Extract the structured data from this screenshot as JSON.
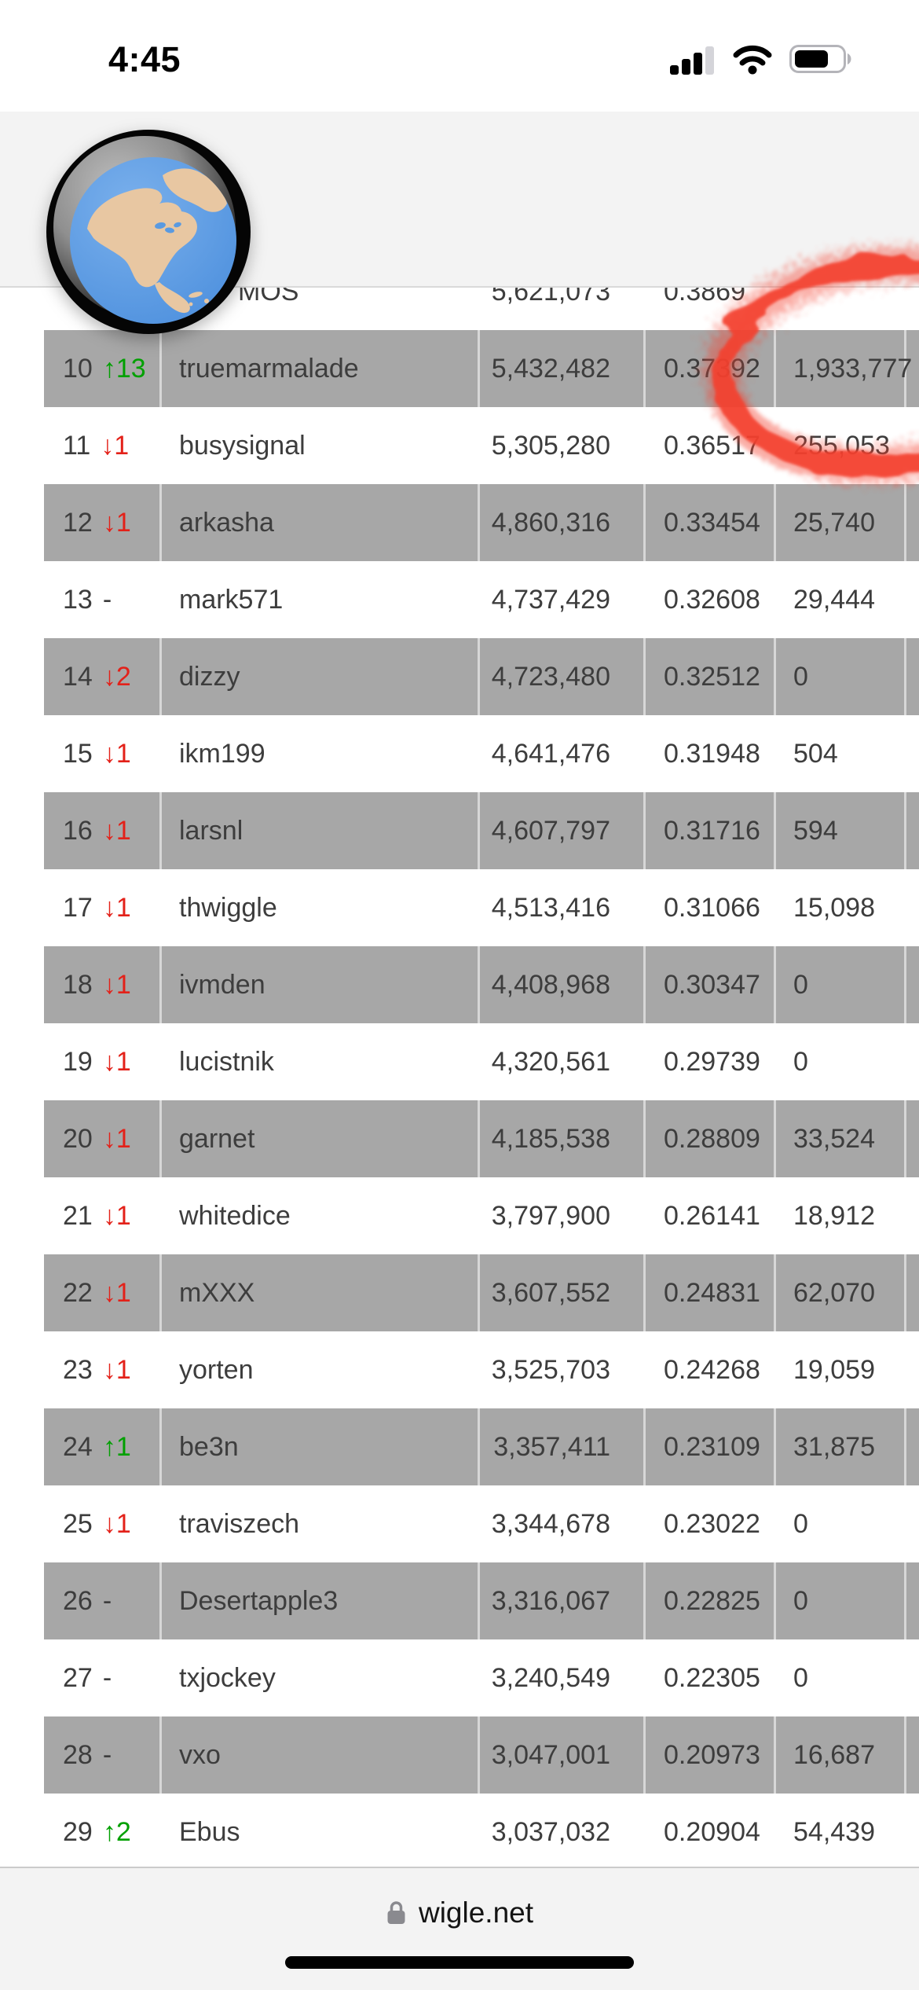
{
  "status_bar": {
    "time": "4:45",
    "cellular_icon": "cellular-signal-3-of-4-bars",
    "wifi_icon": "wifi-full",
    "battery_icon": "battery-about-60-percent"
  },
  "header": {
    "logo": "wigle-globe-logo"
  },
  "table": {
    "partial_row": {
      "rank": "",
      "change": "",
      "dir": "",
      "name_fragment": "MOS",
      "total": "5,621,073",
      "ratio": "0.3869",
      "monthly": "",
      "shaded": false
    },
    "rows": [
      {
        "rank": "10",
        "change": "↑13",
        "dir": "up",
        "name": "truemarmalade",
        "total": "5,432,482",
        "ratio": "0.37392",
        "monthly": "1,933,777",
        "shaded": true
      },
      {
        "rank": "11",
        "change": "↓1",
        "dir": "down",
        "name": "busysignal",
        "total": "5,305,280",
        "ratio": "0.36517",
        "monthly": "255,053",
        "shaded": false
      },
      {
        "rank": "12",
        "change": "↓1",
        "dir": "down",
        "name": "arkasha",
        "total": "4,860,316",
        "ratio": "0.33454",
        "monthly": "25,740",
        "shaded": true
      },
      {
        "rank": "13",
        "change": "-",
        "dir": "",
        "name": "mark571",
        "total": "4,737,429",
        "ratio": "0.32608",
        "monthly": "29,444",
        "shaded": false
      },
      {
        "rank": "14",
        "change": "↓2",
        "dir": "down",
        "name": "dizzy",
        "total": "4,723,480",
        "ratio": "0.32512",
        "monthly": "0",
        "shaded": true
      },
      {
        "rank": "15",
        "change": "↓1",
        "dir": "down",
        "name": "ikm199",
        "total": "4,641,476",
        "ratio": "0.31948",
        "monthly": "504",
        "shaded": false
      },
      {
        "rank": "16",
        "change": "↓1",
        "dir": "down",
        "name": "larsnl",
        "total": "4,607,797",
        "ratio": "0.31716",
        "monthly": "594",
        "shaded": true
      },
      {
        "rank": "17",
        "change": "↓1",
        "dir": "down",
        "name": "thwiggle",
        "total": "4,513,416",
        "ratio": "0.31066",
        "monthly": "15,098",
        "shaded": false
      },
      {
        "rank": "18",
        "change": "↓1",
        "dir": "down",
        "name": "ivmden",
        "total": "4,408,968",
        "ratio": "0.30347",
        "monthly": "0",
        "shaded": true
      },
      {
        "rank": "19",
        "change": "↓1",
        "dir": "down",
        "name": "lucistnik",
        "total": "4,320,561",
        "ratio": "0.29739",
        "monthly": "0",
        "shaded": false
      },
      {
        "rank": "20",
        "change": "↓1",
        "dir": "down",
        "name": "garnet",
        "total": "4,185,538",
        "ratio": "0.28809",
        "monthly": "33,524",
        "shaded": true
      },
      {
        "rank": "21",
        "change": "↓1",
        "dir": "down",
        "name": "whitedice",
        "total": "3,797,900",
        "ratio": "0.26141",
        "monthly": "18,912",
        "shaded": false
      },
      {
        "rank": "22",
        "change": "↓1",
        "dir": "down",
        "name": "mXXX",
        "total": "3,607,552",
        "ratio": "0.24831",
        "monthly": "62,070",
        "shaded": true
      },
      {
        "rank": "23",
        "change": "↓1",
        "dir": "down",
        "name": "yorten",
        "total": "3,525,703",
        "ratio": "0.24268",
        "monthly": "19,059",
        "shaded": false
      },
      {
        "rank": "24",
        "change": "↑1",
        "dir": "up",
        "name": "be3n",
        "total": "3,357,411",
        "ratio": "0.23109",
        "monthly": "31,875",
        "shaded": true
      },
      {
        "rank": "25",
        "change": "↓1",
        "dir": "down",
        "name": "traviszech",
        "total": "3,344,678",
        "ratio": "0.23022",
        "monthly": "0",
        "shaded": false
      },
      {
        "rank": "26",
        "change": "-",
        "dir": "",
        "name": "Desertapple3",
        "total": "3,316,067",
        "ratio": "0.22825",
        "monthly": "0",
        "shaded": true
      },
      {
        "rank": "27",
        "change": "-",
        "dir": "",
        "name": "txjockey",
        "total": "3,240,549",
        "ratio": "0.22305",
        "monthly": "0",
        "shaded": false
      },
      {
        "rank": "28",
        "change": "-",
        "dir": "",
        "name": "vxo",
        "total": "3,047,001",
        "ratio": "0.20973",
        "monthly": "16,687",
        "shaded": true
      },
      {
        "rank": "29",
        "change": "↑2",
        "dir": "up",
        "name": "Ebus",
        "total": "3,037,032",
        "ratio": "0.20904",
        "monthly": "54,439",
        "shaded": false
      }
    ]
  },
  "annotation": {
    "shape": "hand-drawn-red-circle",
    "circled_value": "1,933,777",
    "color": "#f4402e"
  },
  "footer": {
    "site": "wigle.net",
    "lock_icon": "lock-icon"
  },
  "colors": {
    "shaded_row": "#a7a7a7",
    "up_green": "#00a000",
    "down_red": "#e32119",
    "annotation_red": "#f4402e",
    "chrome_bg": "#f3f3f3",
    "text_dark": "#3d3d3d"
  }
}
